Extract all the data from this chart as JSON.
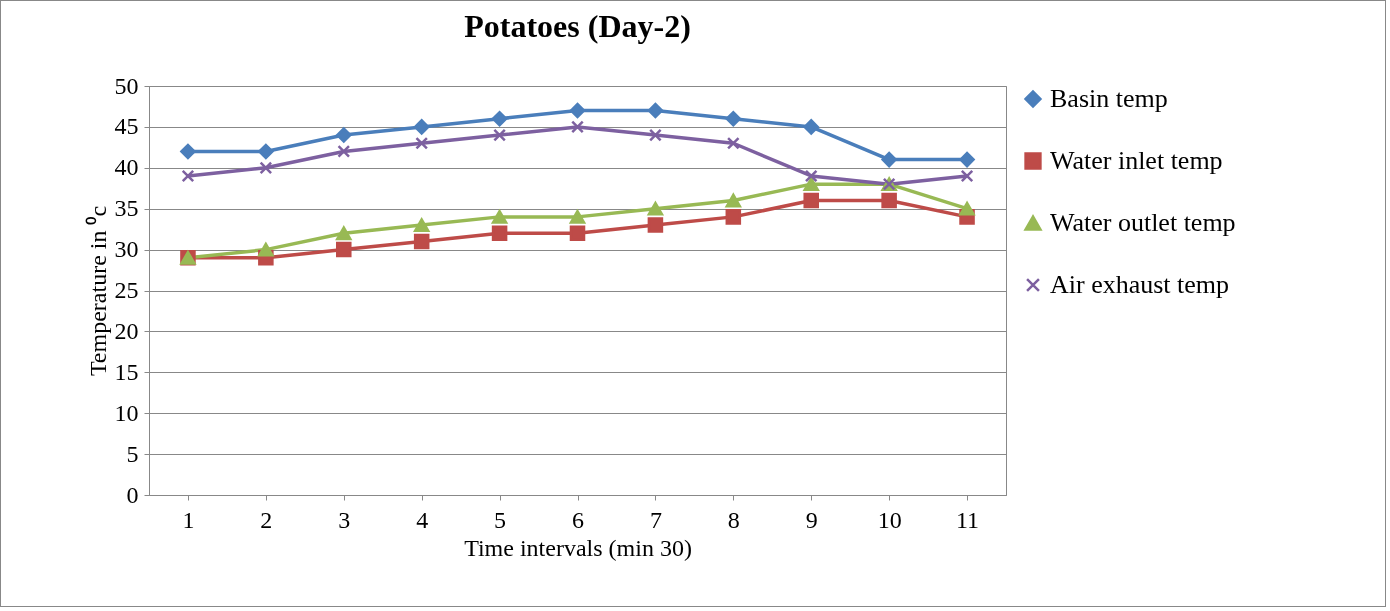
{
  "chart_data": {
    "type": "line",
    "title": "Potatoes (Day-2)",
    "xlabel": "Time intervals (min 30)",
    "ylabel": "Temperature in ⁰c",
    "categories": [
      "1",
      "2",
      "3",
      "4",
      "5",
      "6",
      "7",
      "8",
      "9",
      "10",
      "11"
    ],
    "ylim": [
      0,
      50
    ],
    "yticks": [
      0,
      5,
      10,
      15,
      20,
      25,
      30,
      35,
      40,
      45,
      50
    ],
    "grid": "y",
    "legend": "right",
    "series": [
      {
        "name": "Basin temp",
        "color": "#4a7ebb",
        "marker": "diamond",
        "values": [
          42,
          42,
          44,
          45,
          46,
          47,
          47,
          46,
          45,
          41,
          41
        ]
      },
      {
        "name": "Water inlet temp",
        "color": "#be4b48",
        "marker": "square",
        "values": [
          29,
          29,
          30,
          31,
          32,
          32,
          33,
          34,
          36,
          36,
          34
        ]
      },
      {
        "name": "Water outlet temp",
        "color": "#98b954",
        "marker": "triangle",
        "values": [
          29,
          30,
          32,
          33,
          34,
          34,
          35,
          36,
          38,
          38,
          35
        ]
      },
      {
        "name": "Air exhaust temp",
        "color": "#7d60a0",
        "marker": "cross",
        "values": [
          39,
          40,
          42,
          43,
          44,
          45,
          44,
          43,
          39,
          38,
          39
        ]
      }
    ]
  }
}
